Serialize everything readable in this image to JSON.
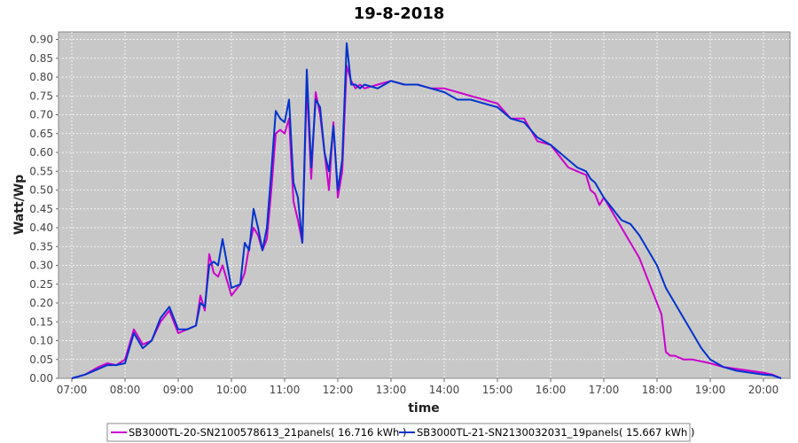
{
  "chart_data": {
    "type": "line",
    "title": "19-8-2018",
    "xlabel": "time",
    "ylabel": "Watt/Wp",
    "xlim": [
      "06:45",
      "20:30"
    ],
    "ylim": [
      0,
      0.92
    ],
    "x_ticks": [
      "07:00",
      "08:00",
      "09:00",
      "10:00",
      "11:00",
      "12:00",
      "13:00",
      "14:00",
      "15:00",
      "16:00",
      "17:00",
      "18:00",
      "19:00",
      "20:00"
    ],
    "y_ticks": [
      "0.00",
      "0.05",
      "0.10",
      "0.15",
      "0.20",
      "0.25",
      "0.30",
      "0.35",
      "0.40",
      "0.45",
      "0.50",
      "0.55",
      "0.60",
      "0.65",
      "0.70",
      "0.75",
      "0.80",
      "0.85",
      "0.90"
    ],
    "grid": true,
    "background": "#c8c8c8",
    "legend_position": "bottom",
    "series": [
      {
        "name": "SB3000TL-20-SN2100578613_21panels( 16.716 kWh )",
        "color": "#cc00cc",
        "x": [
          "07:00",
          "07:15",
          "07:30",
          "07:40",
          "07:50",
          "08:00",
          "08:10",
          "08:20",
          "08:30",
          "08:40",
          "08:50",
          "09:00",
          "09:10",
          "09:20",
          "09:25",
          "09:30",
          "09:35",
          "09:40",
          "09:45",
          "09:50",
          "10:00",
          "10:10",
          "10:15",
          "10:20",
          "10:25",
          "10:30",
          "10:35",
          "10:40",
          "10:45",
          "10:50",
          "10:55",
          "11:00",
          "11:05",
          "11:10",
          "11:15",
          "11:20",
          "11:25",
          "11:30",
          "11:35",
          "11:40",
          "11:45",
          "11:50",
          "11:55",
          "12:00",
          "12:05",
          "12:10",
          "12:15",
          "12:20",
          "12:25",
          "12:30",
          "12:45",
          "13:00",
          "13:15",
          "13:30",
          "13:45",
          "14:00",
          "14:15",
          "14:30",
          "14:45",
          "15:00",
          "15:15",
          "15:30",
          "15:45",
          "16:00",
          "16:10",
          "16:20",
          "16:30",
          "16:40",
          "16:45",
          "16:50",
          "16:55",
          "17:00",
          "17:10",
          "17:20",
          "17:30",
          "17:40",
          "17:50",
          "18:00",
          "18:05",
          "18:10",
          "18:15",
          "18:20",
          "18:30",
          "18:40",
          "18:50",
          "19:00",
          "19:15",
          "19:30",
          "19:45",
          "20:00",
          "20:10",
          "20:20"
        ],
        "values": [
          0.0,
          0.01,
          0.03,
          0.04,
          0.035,
          0.05,
          0.13,
          0.09,
          0.1,
          0.15,
          0.18,
          0.12,
          0.13,
          0.14,
          0.22,
          0.18,
          0.33,
          0.28,
          0.27,
          0.3,
          0.22,
          0.25,
          0.28,
          0.35,
          0.4,
          0.38,
          0.34,
          0.37,
          0.5,
          0.65,
          0.66,
          0.65,
          0.69,
          0.47,
          0.42,
          0.36,
          0.78,
          0.53,
          0.76,
          0.7,
          0.6,
          0.5,
          0.68,
          0.48,
          0.55,
          0.83,
          0.79,
          0.77,
          0.78,
          0.77,
          0.78,
          0.79,
          0.78,
          0.78,
          0.77,
          0.77,
          0.76,
          0.75,
          0.74,
          0.73,
          0.69,
          0.69,
          0.63,
          0.62,
          0.59,
          0.56,
          0.55,
          0.54,
          0.5,
          0.49,
          0.46,
          0.48,
          0.44,
          0.4,
          0.36,
          0.32,
          0.26,
          0.2,
          0.17,
          0.07,
          0.06,
          0.06,
          0.05,
          0.05,
          0.045,
          0.04,
          0.03,
          0.025,
          0.02,
          0.015,
          0.01,
          0.0
        ]
      },
      {
        "name": "SB3000TL-21-SN2130032031_19panels( 15.667 kWh )",
        "color": "#0033cc",
        "x": [
          "07:00",
          "07:15",
          "07:30",
          "07:40",
          "07:50",
          "08:00",
          "08:10",
          "08:20",
          "08:30",
          "08:40",
          "08:50",
          "09:00",
          "09:10",
          "09:20",
          "09:25",
          "09:30",
          "09:35",
          "09:40",
          "09:45",
          "09:50",
          "10:00",
          "10:10",
          "10:15",
          "10:20",
          "10:25",
          "10:30",
          "10:35",
          "10:40",
          "10:45",
          "10:50",
          "10:55",
          "11:00",
          "11:05",
          "11:10",
          "11:15",
          "11:20",
          "11:25",
          "11:30",
          "11:35",
          "11:40",
          "11:45",
          "11:50",
          "11:55",
          "12:00",
          "12:05",
          "12:10",
          "12:15",
          "12:20",
          "12:25",
          "12:30",
          "12:45",
          "13:00",
          "13:15",
          "13:30",
          "13:45",
          "14:00",
          "14:15",
          "14:30",
          "14:45",
          "15:00",
          "15:15",
          "15:30",
          "15:45",
          "16:00",
          "16:10",
          "16:20",
          "16:30",
          "16:40",
          "16:45",
          "16:50",
          "16:55",
          "17:00",
          "17:10",
          "17:20",
          "17:30",
          "17:40",
          "17:50",
          "18:00",
          "18:05",
          "18:10",
          "18:15",
          "18:20",
          "18:30",
          "18:40",
          "18:50",
          "19:00",
          "19:15",
          "19:30",
          "19:45",
          "20:00",
          "20:10",
          "20:20"
        ],
        "values": [
          0.0,
          0.01,
          0.025,
          0.035,
          0.035,
          0.04,
          0.12,
          0.08,
          0.1,
          0.16,
          0.19,
          0.13,
          0.13,
          0.14,
          0.2,
          0.19,
          0.3,
          0.31,
          0.3,
          0.37,
          0.24,
          0.25,
          0.36,
          0.34,
          0.45,
          0.4,
          0.34,
          0.4,
          0.55,
          0.71,
          0.69,
          0.68,
          0.74,
          0.52,
          0.48,
          0.36,
          0.82,
          0.56,
          0.74,
          0.72,
          0.6,
          0.55,
          0.67,
          0.5,
          0.58,
          0.89,
          0.78,
          0.78,
          0.77,
          0.78,
          0.77,
          0.79,
          0.78,
          0.78,
          0.77,
          0.76,
          0.74,
          0.74,
          0.73,
          0.72,
          0.69,
          0.68,
          0.64,
          0.62,
          0.6,
          0.58,
          0.56,
          0.55,
          0.53,
          0.52,
          0.5,
          0.48,
          0.45,
          0.42,
          0.41,
          0.38,
          0.34,
          0.3,
          0.27,
          0.24,
          0.22,
          0.2,
          0.16,
          0.12,
          0.08,
          0.05,
          0.03,
          0.02,
          0.015,
          0.01,
          0.008,
          0.0
        ]
      }
    ]
  }
}
